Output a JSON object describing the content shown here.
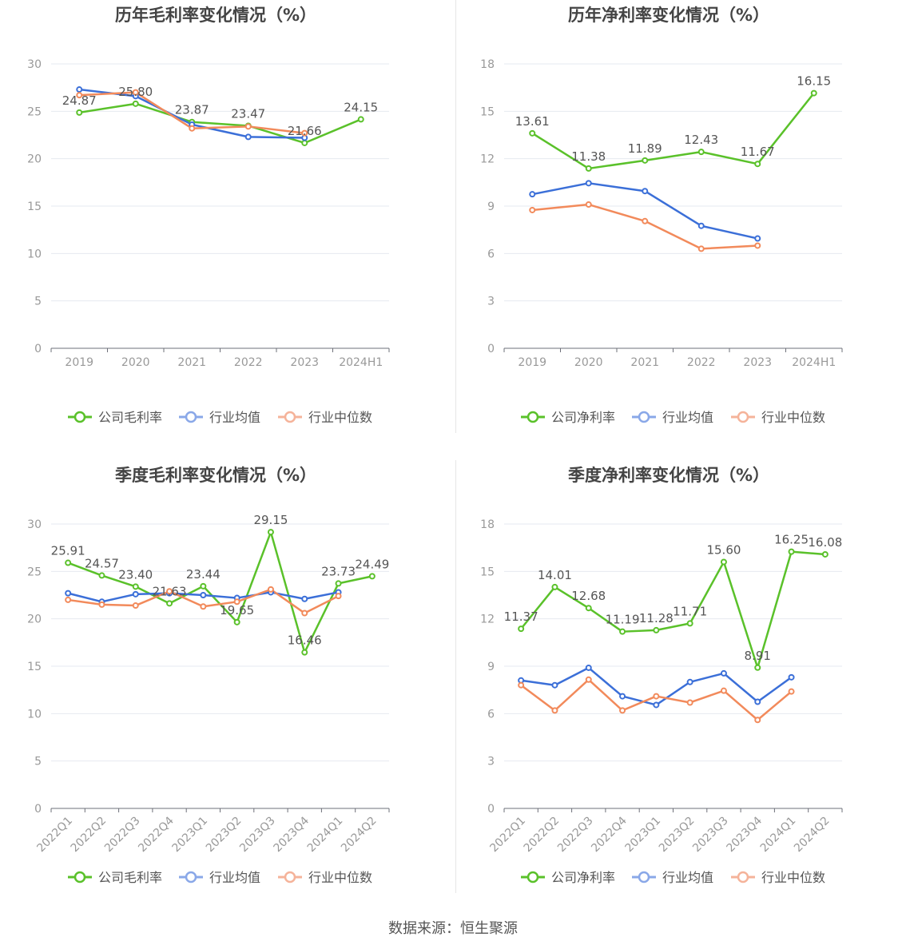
{
  "colors": {
    "company": "#5ac12a",
    "avg": "#3b6fd8",
    "median": "#f28a5b",
    "legendAvg": "#8aa8e8",
    "legendMedian": "#f5b39a",
    "grid": "#e6e9f0",
    "axis": "#6e7079",
    "tick": "#999999",
    "label": "#555555"
  },
  "source": "数据来源：恒生聚源",
  "chart_data": [
    {
      "type": "line",
      "title": "历年毛利率变化情况（%）",
      "categories": [
        "2019",
        "2020",
        "2021",
        "2022",
        "2023",
        "2024H1"
      ],
      "ylim": [
        0,
        30
      ],
      "yticks": [
        0,
        5,
        10,
        15,
        20,
        25,
        30
      ],
      "rotateX": false,
      "legend_position": "bottom",
      "grid": true,
      "series": [
        {
          "name": "公司毛利率",
          "role": "company",
          "values": [
            24.87,
            25.8,
            23.87,
            23.47,
            21.66,
            24.15
          ],
          "labels": true
        },
        {
          "name": "行业均值",
          "role": "avg",
          "values": [
            27.3,
            26.6,
            23.6,
            22.3,
            22.2,
            null
          ],
          "labels": false
        },
        {
          "name": "行业中位数",
          "role": "median",
          "values": [
            26.7,
            27.0,
            23.2,
            23.4,
            22.7,
            null
          ],
          "labels": false
        }
      ]
    },
    {
      "type": "line",
      "title": "历年净利率变化情况（%）",
      "categories": [
        "2019",
        "2020",
        "2021",
        "2022",
        "2023",
        "2024H1"
      ],
      "ylim": [
        0,
        18
      ],
      "yticks": [
        0,
        3,
        6,
        9,
        12,
        15,
        18
      ],
      "rotateX": false,
      "legend_position": "bottom",
      "grid": true,
      "series": [
        {
          "name": "公司净利率",
          "role": "company",
          "values": [
            13.61,
            11.38,
            11.89,
            12.43,
            11.67,
            16.15
          ],
          "labels": true
        },
        {
          "name": "行业均值",
          "role": "avg",
          "values": [
            9.75,
            10.45,
            9.95,
            7.75,
            6.95,
            null
          ],
          "labels": false
        },
        {
          "name": "行业中位数",
          "role": "median",
          "values": [
            8.75,
            9.1,
            8.05,
            6.3,
            6.5,
            null
          ],
          "labels": false
        }
      ]
    },
    {
      "type": "line",
      "title": "季度毛利率变化情况（%）",
      "categories": [
        "2022Q1",
        "2022Q2",
        "2022Q3",
        "2022Q4",
        "2023Q1",
        "2023Q2",
        "2023Q3",
        "2023Q4",
        "2024Q1",
        "2024Q2"
      ],
      "ylim": [
        0,
        30
      ],
      "yticks": [
        0,
        5,
        10,
        15,
        20,
        25,
        30
      ],
      "rotateX": true,
      "legend_position": "bottom",
      "grid": true,
      "series": [
        {
          "name": "公司毛利率",
          "role": "company",
          "values": [
            25.91,
            24.57,
            23.4,
            21.63,
            23.44,
            19.65,
            29.15,
            16.46,
            23.73,
            24.49
          ],
          "labels": true
        },
        {
          "name": "行业均值",
          "role": "avg",
          "values": [
            22.7,
            21.8,
            22.6,
            22.7,
            22.5,
            22.2,
            22.8,
            22.1,
            22.8,
            null
          ],
          "labels": false
        },
        {
          "name": "行业中位数",
          "role": "median",
          "values": [
            22.0,
            21.5,
            21.4,
            22.9,
            21.3,
            21.8,
            23.1,
            20.6,
            22.4,
            null
          ],
          "labels": false
        }
      ]
    },
    {
      "type": "line",
      "title": "季度净利率变化情况（%）",
      "categories": [
        "2022Q1",
        "2022Q2",
        "2022Q3",
        "2022Q4",
        "2023Q1",
        "2023Q2",
        "2023Q3",
        "2023Q4",
        "2024Q1",
        "2024Q2"
      ],
      "ylim": [
        0,
        18
      ],
      "yticks": [
        0,
        3,
        6,
        9,
        12,
        15,
        18
      ],
      "rotateX": true,
      "legend_position": "bottom",
      "grid": true,
      "series": [
        {
          "name": "公司净利率",
          "role": "company",
          "values": [
            11.37,
            14.01,
            12.68,
            11.19,
            11.28,
            11.71,
            15.6,
            8.91,
            16.25,
            16.08
          ],
          "labels": true
        },
        {
          "name": "行业均值",
          "role": "avg",
          "values": [
            8.1,
            7.8,
            8.9,
            7.1,
            6.55,
            8.0,
            8.55,
            6.75,
            8.3,
            null
          ],
          "labels": false
        },
        {
          "name": "行业中位数",
          "role": "median",
          "values": [
            7.8,
            6.2,
            8.15,
            6.2,
            7.1,
            6.7,
            7.45,
            5.6,
            7.4,
            null
          ],
          "labels": false
        }
      ]
    }
  ]
}
